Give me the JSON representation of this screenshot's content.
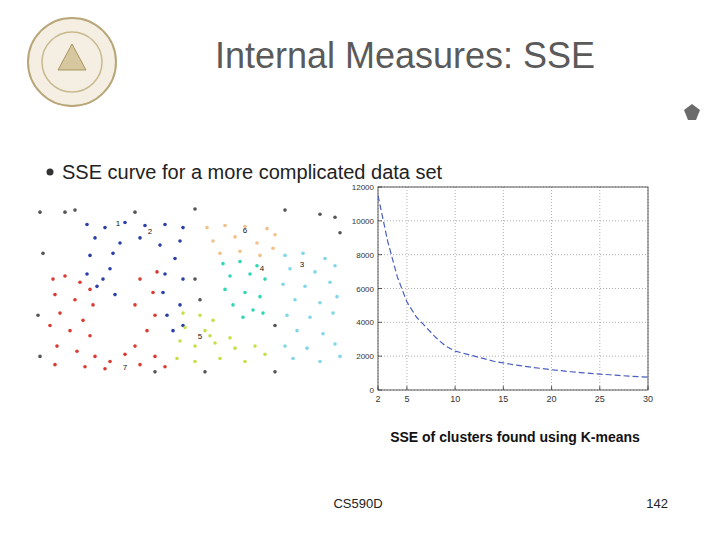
{
  "slide": {
    "title": "Internal Measures: SSE",
    "bullet": "SSE curve for a more complicated data set",
    "caption": "SSE of clusters found using K-means",
    "footer": "CS590D",
    "page": "142"
  },
  "chart_data": [
    {
      "type": "scatter",
      "tick_labels": false,
      "xlim": [
        0,
        310
      ],
      "ylim": [
        0,
        165
      ],
      "marker": "dot",
      "series": [
        {
          "color": "#d93a32",
          "x": [
            18,
            30,
            45,
            55,
            20,
            40,
            58,
            25,
            48,
            15,
            35,
            55,
            22,
            42,
            60,
            20,
            75,
            90,
            105,
            120,
            130,
            100,
            112,
            120,
            100,
            118,
            105,
            122,
            70,
            50
          ],
          "values": [
            95,
            98,
            92,
            85,
            80,
            75,
            70,
            62,
            55,
            50,
            45,
            40,
            30,
            25,
            20,
            12,
            15,
            22,
            12,
            20,
            10,
            30,
            45,
            60,
            70,
            82,
            95,
            102,
            8,
            10
          ]
        },
        {
          "color": "#2b3fa8",
          "x": [
            52,
            70,
            90,
            110,
            130,
            148,
            60,
            85,
            105,
            125,
            145,
            55,
            78,
            140,
            52,
            75,
            62,
            80,
            130,
            148,
            128,
            145,
            132,
            148,
            68,
            138
          ],
          "values": [
            148,
            145,
            150,
            147,
            148,
            145,
            135,
            130,
            135,
            128,
            132,
            118,
            120,
            115,
            100,
            105,
            88,
            80,
            100,
            95,
            82,
            70,
            60,
            50,
            95,
            45
          ]
        },
        {
          "color": "#f2c08a",
          "x": [
            172,
            190,
            210,
            232,
            240,
            178,
            200,
            222,
            238,
            185,
            205,
            225
          ],
          "values": [
            145,
            147,
            146,
            144,
            138,
            132,
            136,
            130,
            125,
            120,
            122,
            118
          ]
        },
        {
          "color": "#2ed8b6",
          "x": [
            188,
            205,
            222,
            195,
            215,
            230,
            190,
            210,
            225,
            198,
            218,
            208,
            228
          ],
          "values": [
            110,
            112,
            108,
            98,
            100,
            95,
            85,
            82,
            78,
            70,
            65,
            58,
            62
          ]
        },
        {
          "color": "#c6e04a",
          "x": [
            148,
            165,
            178,
            150,
            170,
            145,
            160,
            180,
            200,
            220,
            230,
            142,
            160,
            185,
            210,
            175,
            195
          ],
          "values": [
            62,
            60,
            55,
            48,
            45,
            35,
            30,
            33,
            28,
            30,
            22,
            18,
            15,
            18,
            15,
            40,
            38
          ]
        },
        {
          "color": "#7fd8e8",
          "x": [
            250,
            268,
            290,
            255,
            280,
            300,
            248,
            270,
            295,
            260,
            285,
            302,
            252,
            275,
            298,
            262,
            288,
            250,
            272,
            300,
            258,
            285,
            305
          ],
          "values": [
            118,
            120,
            115,
            105,
            102,
            108,
            90,
            88,
            92,
            75,
            72,
            78,
            60,
            58,
            62,
            45,
            42,
            30,
            28,
            32,
            18,
            15,
            20
          ]
        },
        {
          "color": "#555555",
          "x": [
            5,
            40,
            100,
            160,
            250,
            300,
            8,
            3,
            5,
            160,
            165,
            240,
            305,
            120,
            240,
            30,
            285,
            170
          ],
          "values": [
            160,
            162,
            160,
            163,
            162,
            155,
            120,
            60,
            20,
            95,
            75,
            5,
            140,
            5,
            50,
            160,
            158,
            5
          ]
        }
      ],
      "annotations": [
        {
          "text": "1",
          "x": 83,
          "y": 147
        },
        {
          "text": "2",
          "x": 115,
          "y": 139
        },
        {
          "text": "6",
          "x": 210,
          "y": 140
        },
        {
          "text": "4",
          "x": 227,
          "y": 103
        },
        {
          "text": "3",
          "x": 267,
          "y": 107
        },
        {
          "text": "5",
          "x": 165,
          "y": 37
        },
        {
          "text": "7",
          "x": 90,
          "y": 7
        }
      ]
    },
    {
      "type": "line",
      "color": "#4a5fbf",
      "line_style": "dashed",
      "grid": true,
      "x": [
        2,
        3,
        4,
        5,
        6,
        7,
        8,
        9,
        10,
        11,
        12,
        13,
        14,
        15,
        16,
        17,
        18,
        19,
        20,
        21,
        22,
        23,
        24,
        25,
        26,
        27,
        28,
        29,
        30
      ],
      "values": [
        11500,
        8800,
        6700,
        5200,
        4300,
        3700,
        3100,
        2600,
        2300,
        2150,
        2000,
        1850,
        1700,
        1600,
        1500,
        1420,
        1340,
        1270,
        1200,
        1140,
        1080,
        1030,
        980,
        940,
        900,
        860,
        820,
        790,
        760
      ],
      "xlim": [
        2,
        30
      ],
      "ylim": [
        0,
        12000
      ],
      "xticks": [
        2,
        5,
        10,
        15,
        20,
        25,
        30
      ],
      "yticks": [
        0,
        2000,
        4000,
        6000,
        8000,
        10000,
        12000
      ]
    }
  ]
}
